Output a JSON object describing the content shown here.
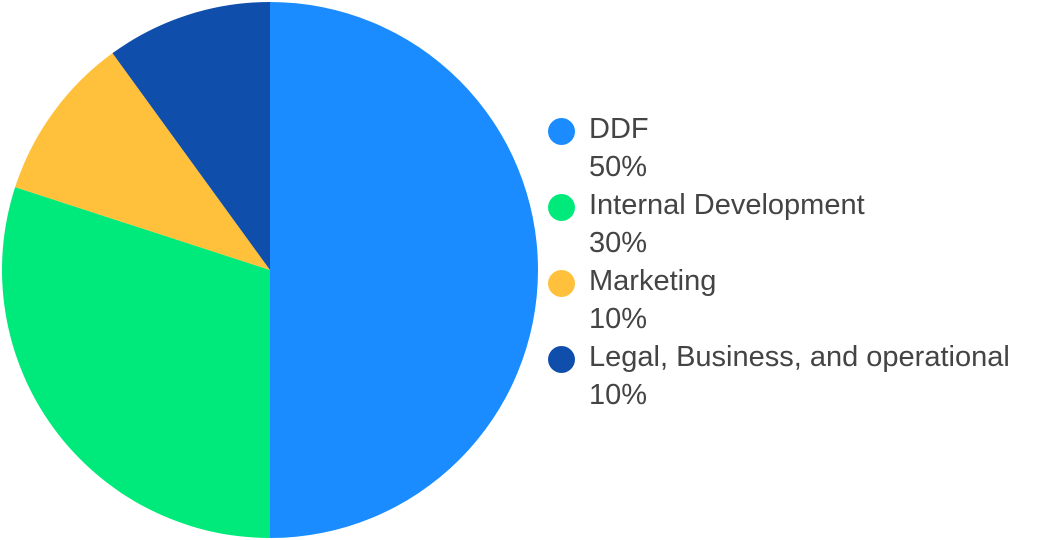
{
  "chart_data": {
    "type": "pie",
    "title": "",
    "legend_position": "right",
    "slices": [
      {
        "label": "DDF",
        "value": 50,
        "display": "50%",
        "color": "#1a8cff"
      },
      {
        "label": "Internal Development",
        "value": 30,
        "display": "30%",
        "color": "#00ea7b"
      },
      {
        "label": "Marketing",
        "value": 10,
        "display": "10%",
        "color": "#ffc13b"
      },
      {
        "label": "Legal, Business, and operational",
        "value": 10,
        "display": "10%",
        "color": "#104eab"
      }
    ]
  }
}
